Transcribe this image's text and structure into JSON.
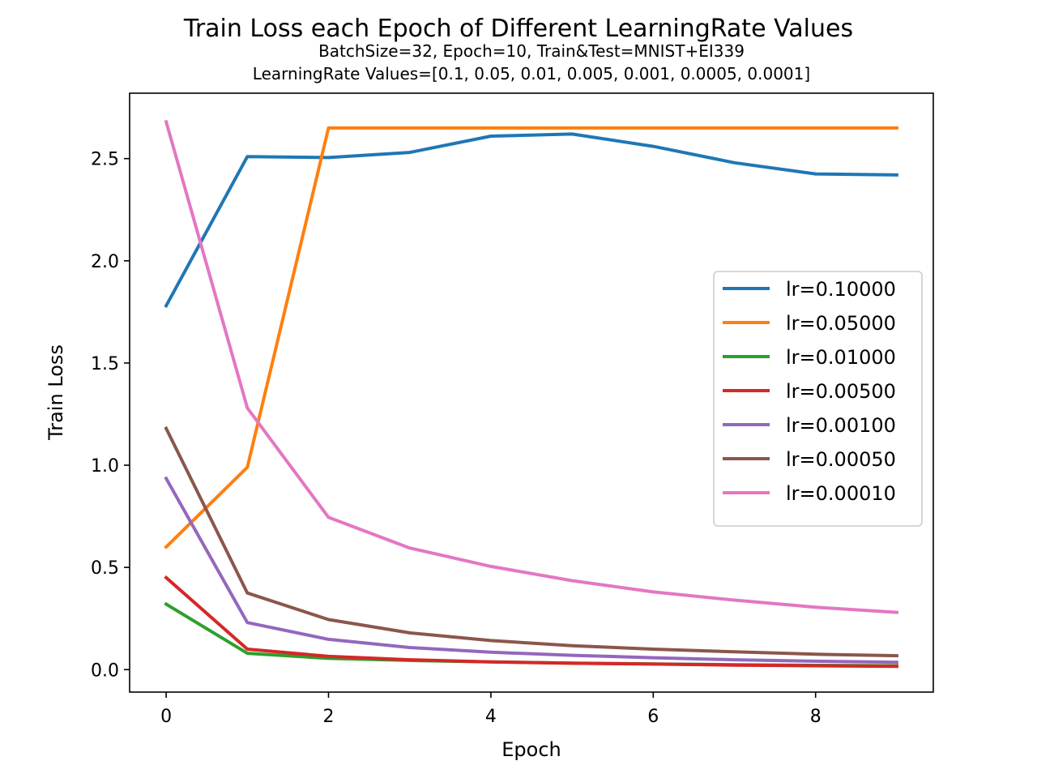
{
  "chart_data": {
    "type": "line",
    "title": "Train Loss each Epoch of Different LearningRate Values",
    "subtitle_lines": [
      "BatchSize=32, Epoch=10, Train&Test=MNIST+EI339",
      "LearningRate Values=[0.1, 0.05, 0.01, 0.005, 0.001, 0.0005, 0.0001]"
    ],
    "xlabel": "Epoch",
    "ylabel": "Train Loss",
    "x": [
      0,
      1,
      2,
      3,
      4,
      5,
      6,
      7,
      8,
      9
    ],
    "xlim": [
      -0.45,
      9.45
    ],
    "ylim": [
      -0.11,
      2.82
    ],
    "xticks": [
      0,
      2,
      4,
      6,
      8
    ],
    "xtick_labels": [
      "0",
      "2",
      "4",
      "6",
      "8"
    ],
    "yticks": [
      0.0,
      0.5,
      1.0,
      1.5,
      2.0,
      2.5
    ],
    "ytick_labels": [
      "0.0",
      "0.5",
      "1.0",
      "1.5",
      "2.0",
      "2.5"
    ],
    "grid": false,
    "legend_position": "center-right",
    "series": [
      {
        "name": "lr=0.10000",
        "color": "#1f77b4",
        "values": [
          1.78,
          2.51,
          2.505,
          2.53,
          2.61,
          2.62,
          2.56,
          2.48,
          2.425,
          2.42
        ]
      },
      {
        "name": "lr=0.05000",
        "color": "#ff7f0e",
        "values": [
          0.6,
          0.99,
          2.65,
          2.65,
          2.65,
          2.65,
          2.65,
          2.65,
          2.65,
          2.65
        ]
      },
      {
        "name": "lr=0.01000",
        "color": "#2ca02c",
        "values": [
          0.32,
          0.08,
          0.055,
          0.045,
          0.038,
          0.032,
          0.028,
          0.024,
          0.021,
          0.019
        ]
      },
      {
        "name": "lr=0.00500",
        "color": "#d62728",
        "values": [
          0.45,
          0.1,
          0.065,
          0.048,
          0.038,
          0.031,
          0.027,
          0.022,
          0.019,
          0.016
        ]
      },
      {
        "name": "lr=0.00100",
        "color": "#9467bd",
        "values": [
          0.935,
          0.23,
          0.148,
          0.108,
          0.085,
          0.07,
          0.058,
          0.048,
          0.041,
          0.036
        ]
      },
      {
        "name": "lr=0.00050",
        "color": "#8c564b",
        "values": [
          1.18,
          0.375,
          0.245,
          0.18,
          0.142,
          0.117,
          0.1,
          0.087,
          0.075,
          0.068
        ]
      },
      {
        "name": "lr=0.00010",
        "color": "#e377c2",
        "values": [
          2.68,
          1.28,
          0.745,
          0.595,
          0.505,
          0.435,
          0.38,
          0.34,
          0.305,
          0.28
        ]
      }
    ]
  }
}
